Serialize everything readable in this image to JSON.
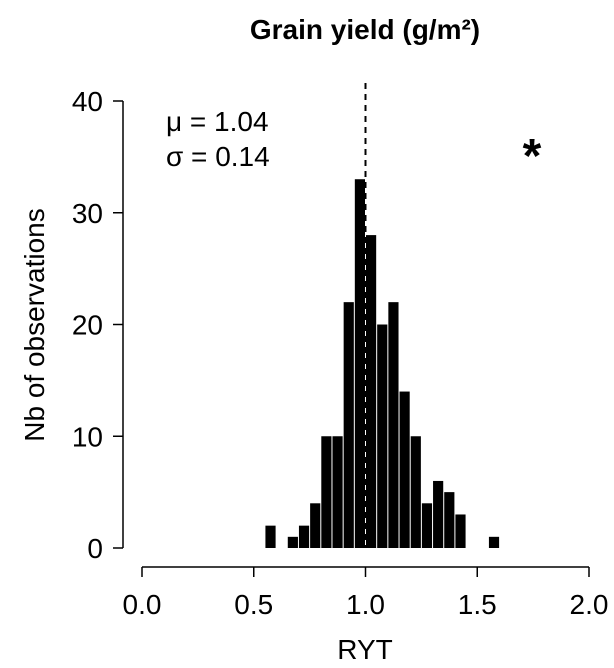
{
  "chart_data": {
    "type": "bar",
    "title": "Grain yield (g/m²)",
    "xlabel": "RYT",
    "ylabel": "Nb of observations",
    "xlim": [
      0.0,
      2.0
    ],
    "ylim": [
      0,
      40
    ],
    "xticks": [
      "0.0",
      "0.5",
      "1.0",
      "1.5",
      "2.0"
    ],
    "yticks": [
      "0",
      "10",
      "20",
      "30",
      "40"
    ],
    "bin_width": 0.05,
    "bins": [
      {
        "x0": 0.55,
        "x1": 0.6,
        "count": 2
      },
      {
        "x0": 0.65,
        "x1": 0.7,
        "count": 1
      },
      {
        "x0": 0.7,
        "x1": 0.75,
        "count": 2
      },
      {
        "x0": 0.75,
        "x1": 0.8,
        "count": 4
      },
      {
        "x0": 0.8,
        "x1": 0.85,
        "count": 10
      },
      {
        "x0": 0.85,
        "x1": 0.9,
        "count": 10
      },
      {
        "x0": 0.9,
        "x1": 0.95,
        "count": 22
      },
      {
        "x0": 0.95,
        "x1": 1.0,
        "count": 33
      },
      {
        "x0": 1.0,
        "x1": 1.05,
        "count": 28
      },
      {
        "x0": 1.05,
        "x1": 1.1,
        "count": 20
      },
      {
        "x0": 1.1,
        "x1": 1.15,
        "count": 22
      },
      {
        "x0": 1.15,
        "x1": 1.2,
        "count": 14
      },
      {
        "x0": 1.2,
        "x1": 1.25,
        "count": 10
      },
      {
        "x0": 1.25,
        "x1": 1.3,
        "count": 4
      },
      {
        "x0": 1.3,
        "x1": 1.35,
        "count": 6
      },
      {
        "x0": 1.35,
        "x1": 1.4,
        "count": 5
      },
      {
        "x0": 1.4,
        "x1": 1.45,
        "count": 3
      },
      {
        "x0": 1.55,
        "x1": 1.6,
        "count": 1
      }
    ],
    "reference_line": {
      "x": 1.0,
      "style": "dashed"
    },
    "annotations": {
      "mean_label": "μ = 1.04",
      "sd_label": "σ = 0.14",
      "significance": "*"
    },
    "bar_color": "#000000",
    "grid": false
  }
}
